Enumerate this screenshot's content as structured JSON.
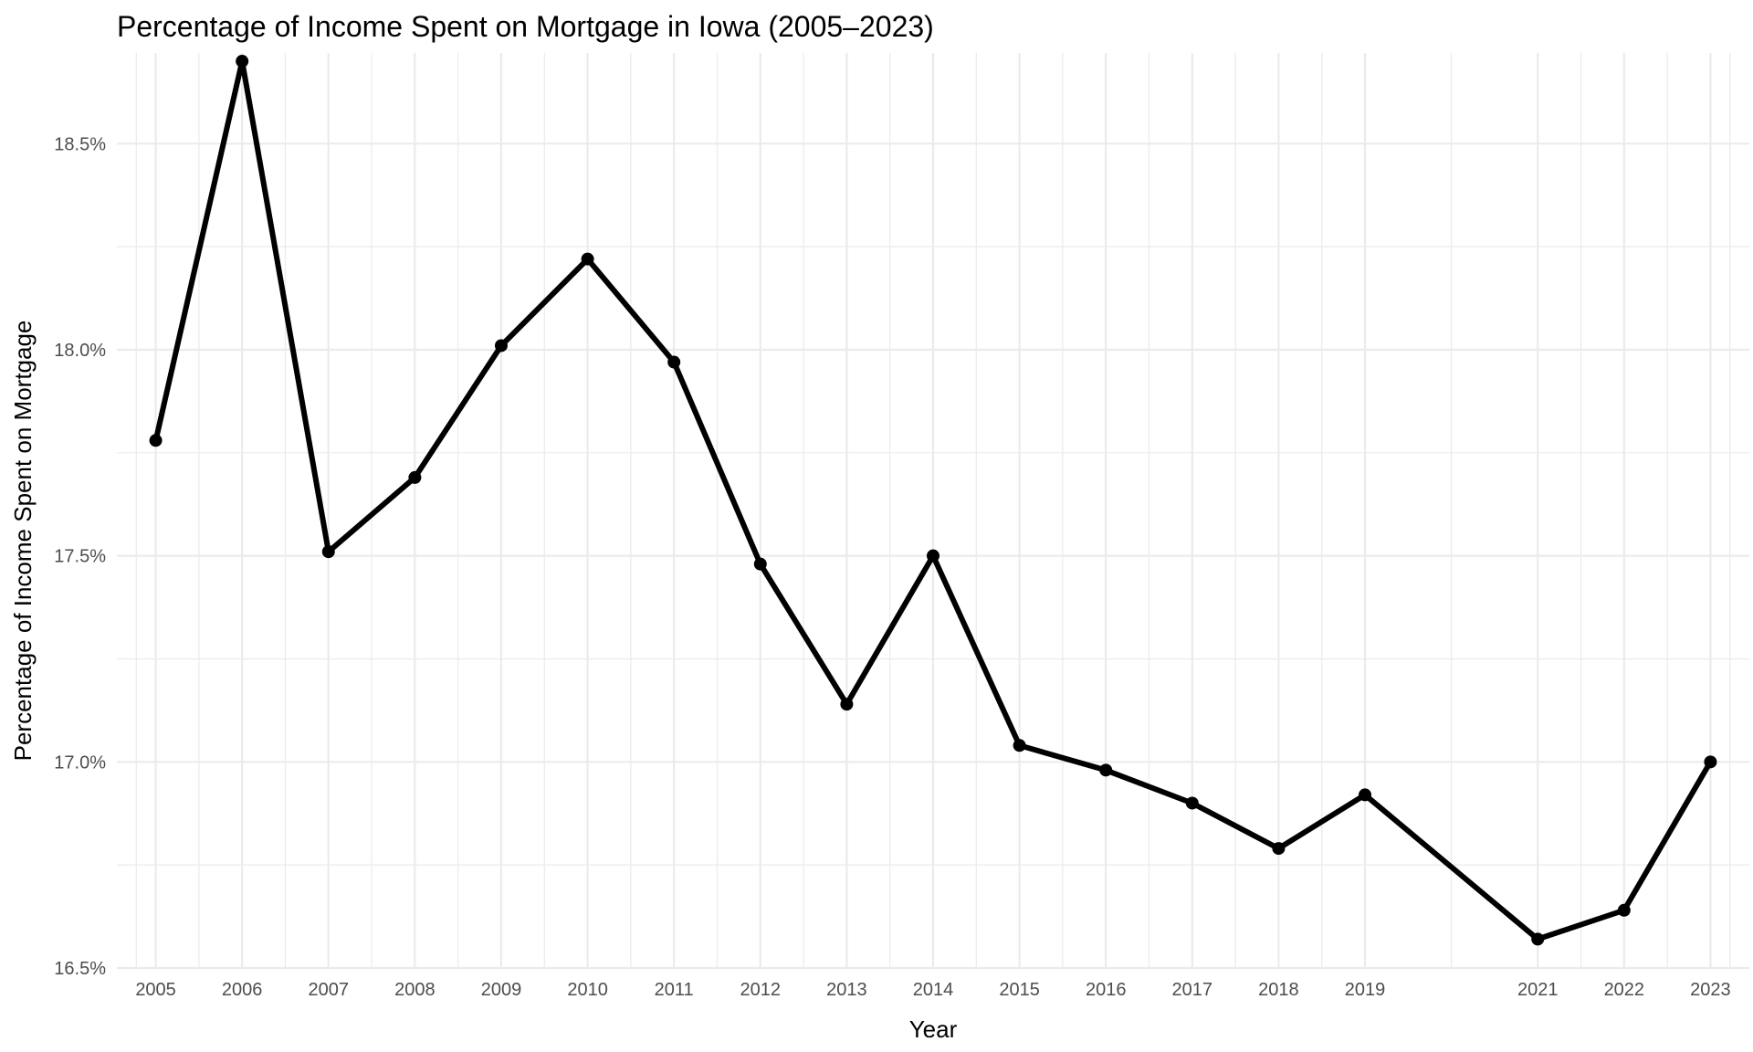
{
  "chart_data": {
    "type": "line",
    "title": "Percentage of Income Spent on Mortgage in Iowa (2005–2023)",
    "xlabel": "Year",
    "ylabel": "Percentage of Income Spent on Mortgage",
    "x": [
      2005,
      2006,
      2007,
      2008,
      2009,
      2010,
      2011,
      2012,
      2013,
      2014,
      2015,
      2016,
      2017,
      2018,
      2019,
      2021,
      2022,
      2023
    ],
    "x_tick_labels": [
      "2005",
      "2006",
      "2007",
      "2008",
      "2009",
      "2010",
      "2011",
      "2012",
      "2013",
      "2014",
      "2015",
      "2016",
      "2017",
      "2018",
      "2019",
      "2021",
      "2022",
      "2023"
    ],
    "y_ticks": [
      16.5,
      17.0,
      17.5,
      18.0,
      18.5
    ],
    "y_tick_labels": [
      "16.5%",
      "17.0%",
      "17.5%",
      "18.0%",
      "18.5%"
    ],
    "series": [
      {
        "values": [
          17.78,
          18.7,
          17.51,
          17.69,
          18.01,
          18.22,
          17.97,
          17.48,
          17.14,
          17.5,
          17.04,
          16.98,
          16.9,
          16.79,
          16.92,
          16.57,
          16.64,
          17.0
        ]
      }
    ],
    "xlim": [
      2004.55,
      2023.45
    ],
    "ylim": [
      16.5,
      18.72
    ],
    "grid": true,
    "legend": "none",
    "colors": {
      "line": "#000000",
      "grid": "#ebebeb",
      "tick_text": "#4d4d4d"
    }
  }
}
